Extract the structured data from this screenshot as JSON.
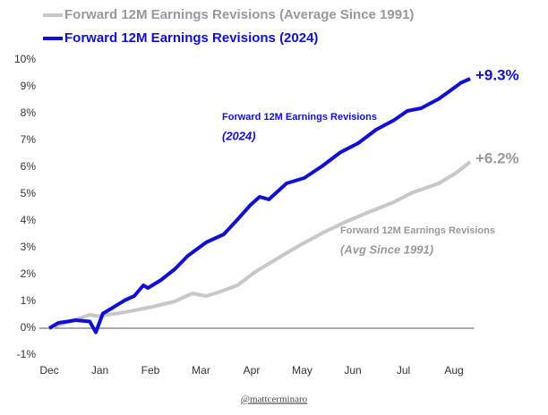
{
  "chart_data": {
    "type": "line",
    "xticks": [
      {
        "value": 0,
        "label": "Dec"
      },
      {
        "value": 1,
        "label": "Jan"
      },
      {
        "value": 2,
        "label": "Feb"
      },
      {
        "value": 3,
        "label": "Mar"
      },
      {
        "value": 4,
        "label": "Apr"
      },
      {
        "value": 5,
        "label": "May"
      },
      {
        "value": 6,
        "label": "Jun"
      },
      {
        "value": 7,
        "label": "Jul"
      },
      {
        "value": 8,
        "label": "Aug"
      }
    ],
    "xlim": [
      -0.2,
      8.4
    ],
    "ylim": [
      -1,
      10
    ],
    "yticks": [
      {
        "value": -1,
        "label": "-1%"
      },
      {
        "value": 0,
        "label": "0%"
      },
      {
        "value": 1,
        "label": "1%"
      },
      {
        "value": 2,
        "label": "2%"
      },
      {
        "value": 3,
        "label": "3%"
      },
      {
        "value": 4,
        "label": "4%"
      },
      {
        "value": 5,
        "label": "5%"
      },
      {
        "value": 6,
        "label": "6%"
      },
      {
        "value": 7,
        "label": "7%"
      },
      {
        "value": 8,
        "label": "8%"
      },
      {
        "value": 9,
        "label": "9%"
      },
      {
        "value": 10,
        "label": "10%"
      }
    ],
    "series": [
      {
        "name": "Forward 12M Earnings Revisions (Average Since 1991)",
        "color": "#c8c8c8",
        "x": [
          0,
          0.8,
          0.97,
          1.5,
          2.04,
          2.48,
          2.83,
          3.1,
          3.36,
          3.72,
          4.07,
          4.51,
          4.96,
          5.4,
          5.84,
          6.28,
          6.81,
          7.17,
          7.7,
          8.05,
          8.32
        ],
        "values": [
          0,
          0.5,
          0.45,
          0.6,
          0.8,
          1.0,
          1.3,
          1.2,
          1.35,
          1.6,
          2.1,
          2.6,
          3.1,
          3.55,
          3.95,
          4.3,
          4.7,
          5.05,
          5.4,
          5.8,
          6.2
        ]
      },
      {
        "name": "Forward 12M Earnings Revisions (2024)",
        "color": "#1010d0",
        "x": [
          0,
          0.18,
          0.53,
          0.8,
          0.92,
          1.06,
          1.24,
          1.5,
          1.68,
          1.86,
          1.95,
          2.21,
          2.48,
          2.74,
          3.1,
          3.45,
          3.72,
          3.98,
          4.16,
          4.34,
          4.69,
          5.04,
          5.4,
          5.75,
          6.11,
          6.46,
          6.81,
          7.08,
          7.35,
          7.7,
          7.96,
          8.14,
          8.32
        ],
        "values": [
          0,
          0.2,
          0.3,
          0.25,
          -0.15,
          0.55,
          0.75,
          1.05,
          1.2,
          1.6,
          1.5,
          1.8,
          2.2,
          2.7,
          3.2,
          3.5,
          4.05,
          4.6,
          4.9,
          4.8,
          5.4,
          5.6,
          6.05,
          6.55,
          6.9,
          7.4,
          7.75,
          8.1,
          8.2,
          8.55,
          8.9,
          9.15,
          9.3
        ]
      }
    ],
    "end_labels": [
      {
        "value": 6.2,
        "label": "+6.2%"
      },
      {
        "value": 9.3,
        "label": "+9.3%"
      }
    ],
    "annotations": [
      "Forward 12M Earnings Revisions",
      "(Avg Since 1991)",
      "Forward 12M Earnings Revisions",
      "(2024)"
    ],
    "credit": "@mattcerminaro"
  }
}
